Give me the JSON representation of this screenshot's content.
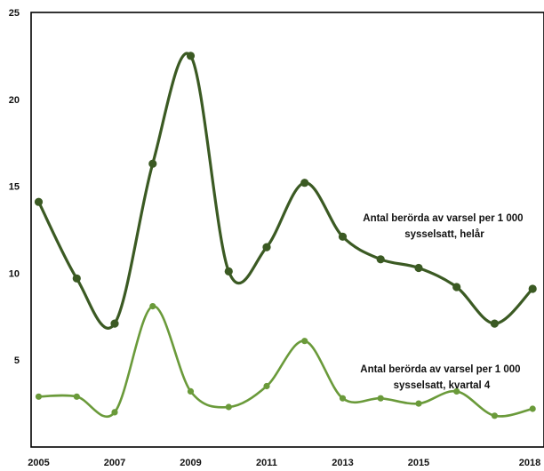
{
  "chart_data": {
    "type": "line",
    "x": [
      2005,
      2006,
      2007,
      2008,
      2009,
      2010,
      2011,
      2012,
      2013,
      2014,
      2015,
      2016,
      2017,
      2018
    ],
    "x_tick_labels": [
      "2005",
      "2007",
      "2009",
      "2011",
      "2013",
      "2015",
      "2018"
    ],
    "y_tick_labels": [
      "5",
      "10",
      "15",
      "20",
      "25"
    ],
    "ylim": [
      0,
      25
    ],
    "xlim": [
      2004.8,
      2018.3
    ],
    "grid": false,
    "series": [
      {
        "name": "Antal berörda av varsel per 1 000 sysselsatt, helår",
        "label_lines": [
          "Antal berörda av varsel per 1 000",
          "sysselsatt, helår"
        ],
        "color": "#3b5a23",
        "values": [
          14.1,
          9.7,
          7.1,
          16.3,
          22.5,
          10.1,
          11.5,
          15.2,
          12.1,
          10.8,
          10.3,
          9.2,
          7.1,
          9.1
        ]
      },
      {
        "name": "Antal berörda av varsel per 1 000 sysselsatt, kvartal 4",
        "label_lines": [
          "Antal berörda av varsel per 1 000",
          "sysselsatt, kvartal 4"
        ],
        "color": "#6a9a3a",
        "values": [
          2.9,
          2.9,
          2.0,
          8.1,
          3.2,
          2.3,
          3.5,
          6.1,
          2.8,
          2.8,
          2.5,
          3.2,
          1.8,
          2.2
        ]
      }
    ]
  }
}
